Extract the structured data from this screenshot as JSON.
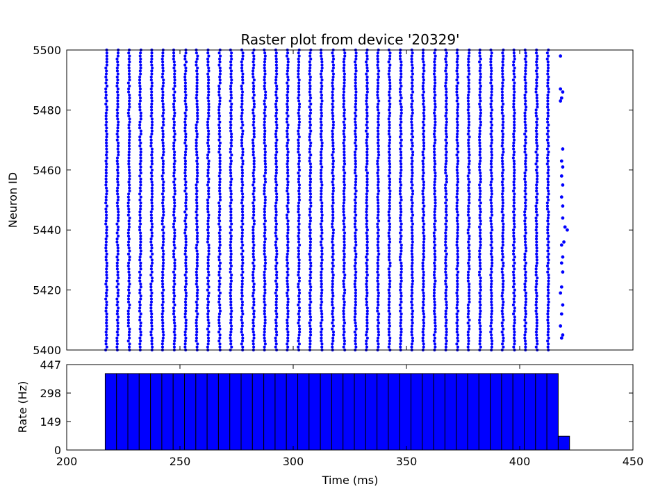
{
  "chart_data": [
    {
      "type": "scatter",
      "title": "Raster plot from device '20329'",
      "ylabel": "Neuron ID",
      "xlabel": "",
      "xlim": [
        200,
        450
      ],
      "ylim": [
        5400,
        5500
      ],
      "yticks": [
        "5400",
        "5420",
        "5440",
        "5460",
        "5480",
        "5500"
      ],
      "x_tick_labels_visible": false,
      "marker_color": "#0000ff",
      "spike_times_start": 217.5,
      "spike_times_end": 416.0,
      "spike_interval": 5.0,
      "neuron_id_range": [
        5400,
        5500
      ],
      "late_spikes": [
        {
          "x": 418.0,
          "y": 5498
        },
        {
          "x": 418.0,
          "y": 5487
        },
        {
          "x": 419.0,
          "y": 5486
        },
        {
          "x": 418.5,
          "y": 5484
        },
        {
          "x": 418.0,
          "y": 5483
        },
        {
          "x": 419.0,
          "y": 5467
        },
        {
          "x": 418.5,
          "y": 5463
        },
        {
          "x": 419.0,
          "y": 5461
        },
        {
          "x": 418.5,
          "y": 5458
        },
        {
          "x": 419.0,
          "y": 5455
        },
        {
          "x": 418.5,
          "y": 5451
        },
        {
          "x": 419.0,
          "y": 5448
        },
        {
          "x": 419.0,
          "y": 5444
        },
        {
          "x": 420.0,
          "y": 5441
        },
        {
          "x": 421.0,
          "y": 5440
        },
        {
          "x": 419.5,
          "y": 5436
        },
        {
          "x": 418.5,
          "y": 5435
        },
        {
          "x": 419.0,
          "y": 5431
        },
        {
          "x": 418.5,
          "y": 5429
        },
        {
          "x": 419.0,
          "y": 5426
        },
        {
          "x": 418.5,
          "y": 5421
        },
        {
          "x": 418.0,
          "y": 5419
        },
        {
          "x": 419.0,
          "y": 5415
        },
        {
          "x": 418.5,
          "y": 5412
        },
        {
          "x": 418.0,
          "y": 5408
        },
        {
          "x": 419.0,
          "y": 5405
        },
        {
          "x": 418.5,
          "y": 5404
        }
      ]
    },
    {
      "type": "bar",
      "title": "",
      "xlabel": "Time (ms)",
      "ylabel": "Rate (Hz)",
      "xlim": [
        200,
        450
      ],
      "ylim": [
        0,
        447
      ],
      "xticks": [
        "200",
        "250",
        "300",
        "350",
        "400",
        "450"
      ],
      "yticks": [
        "0",
        "149",
        "298",
        "447"
      ],
      "bar_color": "#0000ff",
      "bin_width": 5,
      "bin_starts": [
        217,
        222,
        227,
        232,
        237,
        242,
        247,
        252,
        257,
        262,
        267,
        272,
        277,
        282,
        287,
        292,
        297,
        302,
        307,
        312,
        317,
        322,
        327,
        332,
        337,
        342,
        347,
        352,
        357,
        362,
        367,
        372,
        377,
        382,
        387,
        392,
        397,
        402,
        407,
        412,
        417
      ],
      "values": [
        400,
        400,
        400,
        400,
        400,
        400,
        400,
        400,
        400,
        400,
        400,
        400,
        400,
        400,
        400,
        400,
        400,
        400,
        400,
        400,
        400,
        400,
        400,
        400,
        400,
        400,
        400,
        400,
        400,
        400,
        400,
        400,
        400,
        400,
        400,
        400,
        400,
        400,
        400,
        400,
        72
      ]
    }
  ]
}
